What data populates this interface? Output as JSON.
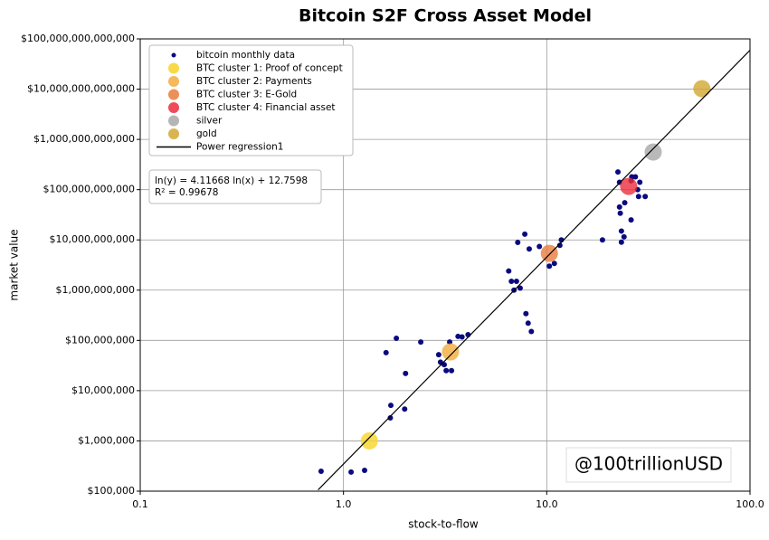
{
  "chart_data": {
    "type": "scatter",
    "title": "Bitcoin S2F Cross Asset Model",
    "x_label": "stock-to-flow",
    "y_label": "market value",
    "log_x": true,
    "log_y": true,
    "grid": true,
    "legend": "upper left",
    "xlim": [
      0.1,
      100
    ],
    "xticks": [
      0.1,
      {
        "value": 1,
        "label": "1.0"
      },
      {
        "value": 10,
        "label": "10.0"
      },
      {
        "value": 100,
        "label": "100.0"
      }
    ],
    "ylim": [
      100000,
      100000000000000
    ],
    "yticks": [
      {
        "value": 100000,
        "label": "$100,000"
      },
      {
        "value": 1000000,
        "label": "$1,000,000"
      },
      {
        "value": 10000000,
        "label": "$10,000,000"
      },
      {
        "value": 100000000,
        "label": "$100,000,000"
      },
      {
        "value": 1000000000,
        "label": "$1,000,000,000"
      },
      {
        "value": 10000000000,
        "label": "$10,000,000,000"
      },
      {
        "value": 100000000000,
        "label": "$100,000,000,000"
      },
      {
        "value": 1000000000000,
        "label": "$1,000,000,000,000"
      },
      {
        "value": 10000000000000,
        "label": "$10,000,000,000,000"
      },
      {
        "value": 100000000000000,
        "label": "$100,000,000,000,000"
      }
    ],
    "annotation": [
      "ln(y) = 4.11668 ln(x) + 12.7598",
      "R² = 0.99678"
    ],
    "watermark": "@100trillionUSD",
    "series": [
      {
        "name": "bitcoin monthly data",
        "color": "#0a0a80",
        "style": "point",
        "x": [
          0.776,
          1.09,
          1.27,
          1.71,
          1.7,
          2.0,
          2.02,
          1.62,
          1.82,
          2.4,
          2.94,
          3.0,
          3.13,
          3.2,
          3.33,
          3.4,
          3.66,
          3.83,
          4.1,
          6.5,
          6.7,
          7.1,
          6.9,
          7.4,
          7.9,
          8.1,
          8.4,
          7.2,
          7.8,
          8.2,
          9.2,
          10.3,
          10.9,
          11.6,
          11.8,
          18.8,
          22.4,
          22.8,
          22.8,
          23.0,
          23.3,
          23.3,
          24.0,
          24.2,
          26.0,
          26.0,
          26.2,
          27.3,
          28.0,
          28.3,
          28.7,
          30.5
        ],
        "values": [
          249000,
          240000,
          260000,
          5100000,
          2870000,
          4300000,
          22000000,
          57000000,
          110000000,
          93000000,
          52000000,
          37000000,
          33000000,
          25000000,
          93000000,
          25000000,
          120000000,
          117000000,
          130000000,
          2400000000,
          1500000000,
          1500000000,
          1000000000,
          1100000000,
          340000000,
          220000000,
          150000000,
          8900000000,
          13000000000,
          6600000000,
          7400000000,
          3000000000,
          3400000000,
          7800000000,
          10000000000,
          10000000000,
          225000000000,
          140000000000,
          45000000000,
          34000000000,
          15000000000,
          9000000000,
          11500000000,
          55000000000,
          150000000000,
          25000000000,
          180000000000,
          180000000000,
          100000000000,
          73000000000,
          140000000000,
          73000000000
        ]
      },
      {
        "name": "BTC cluster 1: Proof of concept",
        "color": "#f7d428",
        "style": "point",
        "x": [
          1.34
        ],
        "values": [
          1000000
        ]
      },
      {
        "name": "BTC cluster 2: Payments",
        "color": "#f3ad3c",
        "style": "point",
        "x": [
          3.36
        ],
        "values": [
          59000000
        ]
      },
      {
        "name": "BTC cluster 3: E-Gold",
        "color": "#e97c3c",
        "style": "point",
        "x": [
          10.3
        ],
        "values": [
          5400000000
        ]
      },
      {
        "name": "BTC cluster 4: Financial asset",
        "color": "#ec2d3c",
        "style": "point",
        "x": [
          25.3
        ],
        "values": [
          116000000000
        ]
      },
      {
        "name": "silver",
        "color": "#a8a8a8",
        "style": "point",
        "x": [
          33.4
        ],
        "values": [
          560000000000
        ]
      },
      {
        "name": "gold",
        "color": "#d2a731",
        "style": "point",
        "x": [
          58
        ],
        "values": [
          10200000000000
        ]
      },
      {
        "name": "Power regression1",
        "color": "#000000",
        "style": "line",
        "x": [
          0.75,
          100
        ],
        "values": [
          106000,
          59600000000000
        ]
      }
    ]
  }
}
